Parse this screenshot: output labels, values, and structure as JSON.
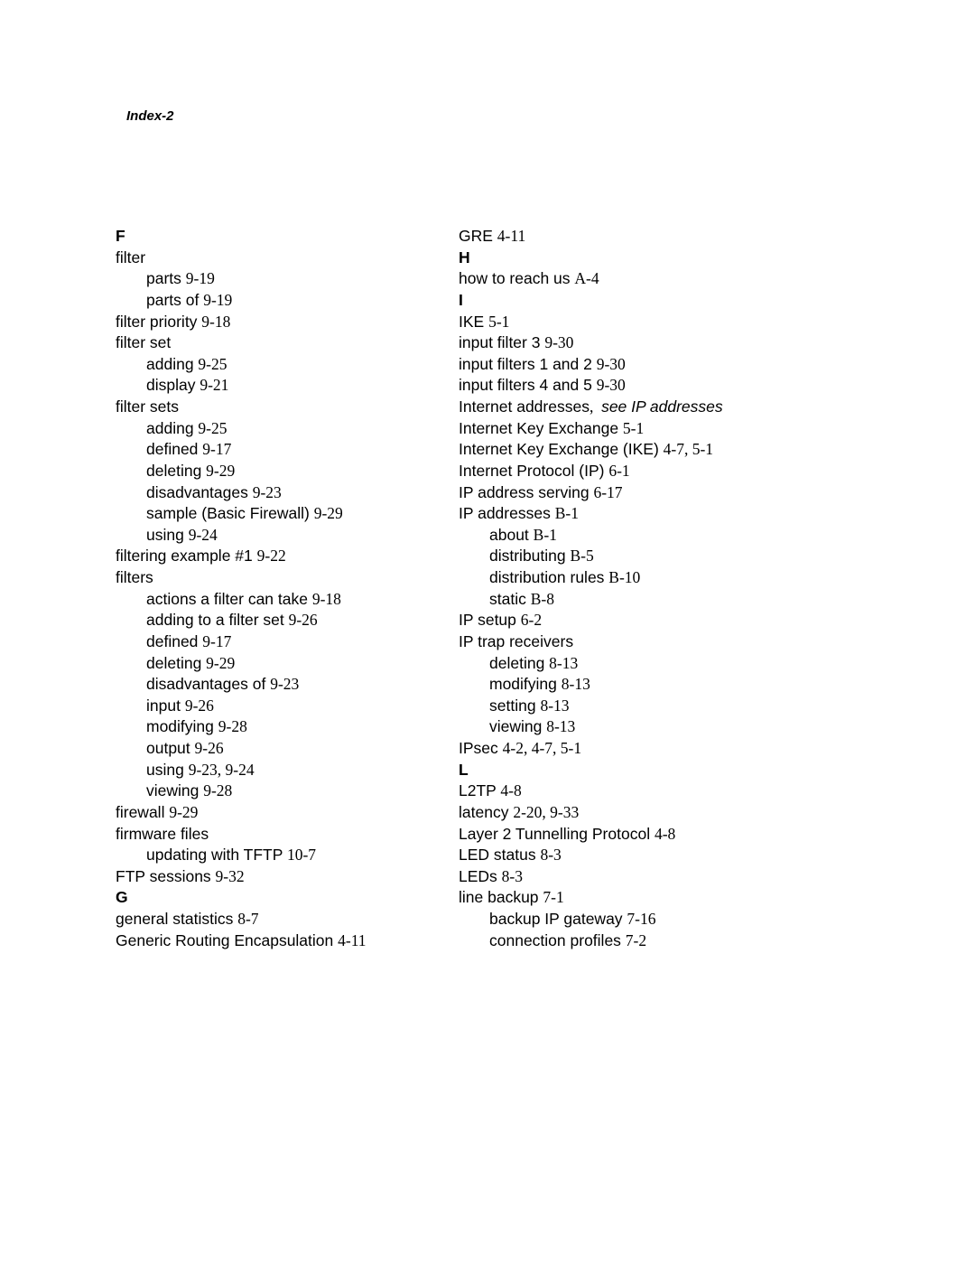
{
  "header": "Index-2",
  "left": [
    {
      "type": "head",
      "text": "F"
    },
    {
      "type": "entry",
      "text": "filter"
    },
    {
      "type": "sub",
      "label": "parts ",
      "ref": "9-19"
    },
    {
      "type": "sub",
      "label": "parts of ",
      "ref": "9-19"
    },
    {
      "type": "entry",
      "label": "filter priority ",
      "ref": "9-18"
    },
    {
      "type": "entry",
      "text": "filter set"
    },
    {
      "type": "sub",
      "label": "adding ",
      "ref": "9-25"
    },
    {
      "type": "sub",
      "label": "display ",
      "ref": "9-21"
    },
    {
      "type": "entry",
      "text": "filter sets"
    },
    {
      "type": "sub",
      "label": "adding ",
      "ref": "9-25"
    },
    {
      "type": "sub",
      "label": "defined ",
      "ref": "9-17"
    },
    {
      "type": "sub",
      "label": "deleting ",
      "ref": "9-29"
    },
    {
      "type": "sub",
      "label": "disadvantages ",
      "ref": "9-23"
    },
    {
      "type": "sub",
      "label": "sample (Basic Firewall) ",
      "ref": "9-29"
    },
    {
      "type": "sub",
      "label": "using ",
      "ref": "9-24"
    },
    {
      "type": "entry",
      "label": "filtering example #1 ",
      "ref": "9-22"
    },
    {
      "type": "entry",
      "text": "filters"
    },
    {
      "type": "sub",
      "label": "actions a filter can take ",
      "ref": "9-18"
    },
    {
      "type": "sub",
      "label": "adding to a filter set ",
      "ref": "9-26"
    },
    {
      "type": "sub",
      "label": "defined ",
      "ref": "9-17"
    },
    {
      "type": "sub",
      "label": "deleting ",
      "ref": "9-29"
    },
    {
      "type": "sub",
      "label": "disadvantages of ",
      "ref": "9-23"
    },
    {
      "type": "sub",
      "label": "input ",
      "ref": "9-26"
    },
    {
      "type": "sub",
      "label": "modifying ",
      "ref": "9-28"
    },
    {
      "type": "sub",
      "label": "output ",
      "ref": "9-26"
    },
    {
      "type": "sub",
      "label": "using ",
      "ref": "9-23, 9-24"
    },
    {
      "type": "sub",
      "label": "viewing ",
      "ref": "9-28"
    },
    {
      "type": "entry",
      "label": "firewall ",
      "ref": "9-29"
    },
    {
      "type": "entry",
      "text": "firmware files"
    },
    {
      "type": "sub",
      "label": "updating with TFTP ",
      "ref": "10-7"
    },
    {
      "type": "entry",
      "label": "FTP sessions ",
      "ref": "9-32"
    },
    {
      "type": "head",
      "text": "G"
    },
    {
      "type": "entry",
      "label": "general statistics ",
      "ref": "8-7"
    },
    {
      "type": "entry",
      "label": "Generic Routing Encapsulation ",
      "ref": "4-11"
    }
  ],
  "right": [
    {
      "type": "entry",
      "label": "GRE ",
      "ref": "4-11"
    },
    {
      "type": "head",
      "text": "H"
    },
    {
      "type": "entry",
      "label": "how to reach us ",
      "ref": "A-4"
    },
    {
      "type": "head",
      "text": "I"
    },
    {
      "type": "entry",
      "label": "IKE ",
      "ref": "5-1"
    },
    {
      "type": "entry",
      "label": "input filter 3 ",
      "ref": "9-30"
    },
    {
      "type": "entry",
      "label": "input filters 1 and 2 ",
      "ref": "9-30"
    },
    {
      "type": "entry",
      "label": "input filters 4 and 5 ",
      "ref": "9-30"
    },
    {
      "type": "xref",
      "label": "Internet addresses",
      "punct": ",  ",
      "see": "see IP addresses"
    },
    {
      "type": "entry",
      "label": "Internet Key Exchange ",
      "ref": "5-1"
    },
    {
      "type": "entry",
      "label": "Internet Key Exchange (IKE) ",
      "ref": "4-7, 5-1"
    },
    {
      "type": "entry",
      "label": "Internet Protocol (IP) ",
      "ref": "6-1"
    },
    {
      "type": "entry",
      "label": "IP address serving ",
      "ref": "6-17"
    },
    {
      "type": "entry",
      "label": "IP addresses ",
      "ref": "B-1"
    },
    {
      "type": "sub",
      "label": "about ",
      "ref": "B-1"
    },
    {
      "type": "sub",
      "label": "distributing ",
      "ref": "B-5"
    },
    {
      "type": "sub",
      "label": "distribution rules ",
      "ref": "B-10"
    },
    {
      "type": "sub",
      "label": "static ",
      "ref": "B-8"
    },
    {
      "type": "entry",
      "label": "IP setup ",
      "ref": "6-2"
    },
    {
      "type": "entry",
      "text": "IP trap receivers"
    },
    {
      "type": "sub",
      "label": "deleting ",
      "ref": "8-13"
    },
    {
      "type": "sub",
      "label": "modifying ",
      "ref": "8-13"
    },
    {
      "type": "sub",
      "label": "setting ",
      "ref": "8-13"
    },
    {
      "type": "sub",
      "label": "viewing ",
      "ref": "8-13"
    },
    {
      "type": "entry",
      "label": "IPsec ",
      "ref": "4-2, 4-7, 5-1"
    },
    {
      "type": "head",
      "text": "L"
    },
    {
      "type": "entry",
      "label": "L2TP ",
      "ref": "4-8"
    },
    {
      "type": "entry",
      "label": "latency ",
      "ref": "2-20, 9-33"
    },
    {
      "type": "entry",
      "label": "Layer 2 Tunnelling Protocol ",
      "ref": "4-8"
    },
    {
      "type": "entry",
      "label": "LED status ",
      "ref": "8-3"
    },
    {
      "type": "entry",
      "label": "LEDs ",
      "ref": "8-3"
    },
    {
      "type": "entry",
      "label": "line backup ",
      "ref": "7-1"
    },
    {
      "type": "sub",
      "label": "backup IP gateway ",
      "ref": "7-16"
    },
    {
      "type": "sub",
      "label": "connection profiles ",
      "ref": "7-2"
    }
  ]
}
